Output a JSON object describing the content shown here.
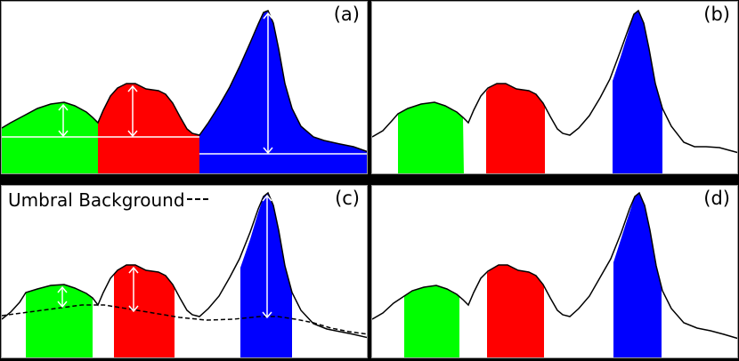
{
  "panels": [
    {
      "id": "a",
      "label": "(a)"
    },
    {
      "id": "b",
      "label": "(b)"
    },
    {
      "id": "c",
      "label": "(c)",
      "legend": "Umbral Background"
    },
    {
      "id": "d",
      "label": "(d)"
    }
  ],
  "colors": {
    "green": "#00ff00",
    "red": "#ff0000",
    "blue": "#0000ff",
    "outline": "#000000",
    "arrow": "#ffffff",
    "panel_bg": "#ffffff",
    "frame_bg": "#000000"
  }
}
